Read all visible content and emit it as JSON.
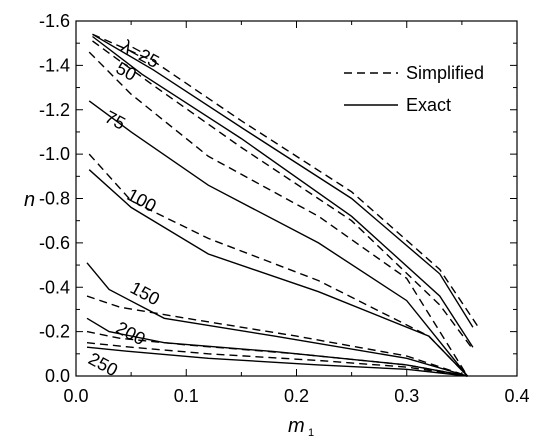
{
  "chart_data": {
    "type": "line",
    "xlabel": "m",
    "xlabel_sub": "1",
    "ylabel": "n",
    "xlim": [
      0.0,
      0.4
    ],
    "ylim": [
      0.0,
      -1.6
    ],
    "x_ticks": [
      "0.0",
      "0.1",
      "0.2",
      "0.3",
      "0.4"
    ],
    "y_ticks": [
      "0.0",
      "-0.2",
      "-0.4",
      "-0.6",
      "-0.8",
      "-1.0",
      "-1.2",
      "-1.4",
      "-1.6"
    ],
    "y_tick_values": [
      0.0,
      -0.2,
      -0.4,
      -0.6,
      -0.8,
      -1.0,
      -1.2,
      -1.4,
      -1.6
    ],
    "x_tick_values": [
      0.0,
      0.1,
      0.2,
      0.3,
      0.4
    ],
    "legend": {
      "position": "top-right",
      "entries": [
        {
          "label": "Simplified",
          "style": "dashed"
        },
        {
          "label": "Exact",
          "style": "solid"
        }
      ]
    },
    "curve_labels": [
      {
        "text": "λ=25",
        "x": 0.04,
        "y": -1.47
      },
      {
        "text": "50",
        "x": 0.035,
        "y": -1.37
      },
      {
        "text": "75",
        "x": 0.025,
        "y": -1.15
      },
      {
        "text": "100",
        "x": 0.045,
        "y": -0.8
      },
      {
        "text": "150",
        "x": 0.048,
        "y": -0.38
      },
      {
        "text": "200",
        "x": 0.035,
        "y": -0.2
      },
      {
        "text": "250",
        "x": 0.01,
        "y": -0.06
      }
    ],
    "series": [
      {
        "lambda": "25",
        "style": "solid",
        "x": [
          0.015,
          0.07,
          0.15,
          0.25,
          0.33,
          0.36
        ],
        "y": [
          -1.54,
          -1.38,
          -1.12,
          -0.8,
          -0.46,
          -0.22
        ]
      },
      {
        "lambda": "25",
        "style": "dashed",
        "x": [
          0.015,
          0.07,
          0.15,
          0.25,
          0.33,
          0.365
        ],
        "y": [
          -1.54,
          -1.42,
          -1.15,
          -0.83,
          -0.48,
          -0.22
        ]
      },
      {
        "lambda": "50",
        "style": "solid",
        "x": [
          0.015,
          0.06,
          0.15,
          0.25,
          0.33,
          0.36
        ],
        "y": [
          -1.53,
          -1.36,
          -1.07,
          -0.72,
          -0.36,
          -0.13
        ]
      },
      {
        "lambda": "50",
        "style": "dashed",
        "x": [
          0.015,
          0.07,
          0.15,
          0.25,
          0.33,
          0.36
        ],
        "y": [
          -1.51,
          -1.31,
          -1.03,
          -0.7,
          -0.32,
          -0.12
        ]
      },
      {
        "lambda": "75",
        "style": "solid",
        "x": [
          0.012,
          0.05,
          0.12,
          0.22,
          0.3,
          0.355
        ],
        "y": [
          -1.24,
          -1.1,
          -0.86,
          -0.6,
          -0.34,
          0.0
        ]
      },
      {
        "lambda": "75",
        "style": "dashed",
        "x": [
          0.012,
          0.05,
          0.12,
          0.22,
          0.3,
          0.355
        ],
        "y": [
          -1.46,
          -1.27,
          -0.99,
          -0.72,
          -0.44,
          0.0
        ]
      },
      {
        "lambda": "100",
        "style": "solid",
        "x": [
          0.012,
          0.05,
          0.12,
          0.22,
          0.32,
          0.355
        ],
        "y": [
          -0.93,
          -0.76,
          -0.55,
          -0.38,
          -0.18,
          0.0
        ]
      },
      {
        "lambda": "100",
        "style": "dashed",
        "x": [
          0.012,
          0.05,
          0.12,
          0.22,
          0.32,
          0.355
        ],
        "y": [
          -1.0,
          -0.79,
          -0.62,
          -0.43,
          -0.18,
          0.0
        ]
      },
      {
        "lambda": "150",
        "style": "solid",
        "x": [
          0.01,
          0.03,
          0.08,
          0.18,
          0.3,
          0.355
        ],
        "y": [
          -0.51,
          -0.39,
          -0.26,
          -0.18,
          -0.08,
          0.0
        ]
      },
      {
        "lambda": "150",
        "style": "dashed",
        "x": [
          0.01,
          0.04,
          0.1,
          0.2,
          0.3,
          0.355
        ],
        "y": [
          -0.36,
          -0.31,
          -0.26,
          -0.18,
          -0.09,
          0.0
        ]
      },
      {
        "lambda": "200",
        "style": "solid",
        "x": [
          0.01,
          0.03,
          0.08,
          0.18,
          0.3,
          0.355
        ],
        "y": [
          -0.26,
          -0.2,
          -0.15,
          -0.11,
          -0.05,
          0.0
        ]
      },
      {
        "lambda": "200",
        "style": "dashed",
        "x": [
          0.01,
          0.04,
          0.1,
          0.2,
          0.3,
          0.355
        ],
        "y": [
          -0.2,
          -0.17,
          -0.14,
          -0.1,
          -0.05,
          0.0
        ]
      },
      {
        "lambda": "250",
        "style": "solid",
        "x": [
          0.01,
          0.05,
          0.12,
          0.22,
          0.3,
          0.355
        ],
        "y": [
          -0.13,
          -0.11,
          -0.08,
          -0.05,
          -0.03,
          0.0
        ]
      },
      {
        "lambda": "250",
        "style": "dashed",
        "x": [
          0.01,
          0.05,
          0.12,
          0.22,
          0.3,
          0.355
        ],
        "y": [
          -0.15,
          -0.13,
          -0.1,
          -0.07,
          -0.04,
          0.0
        ]
      }
    ]
  }
}
